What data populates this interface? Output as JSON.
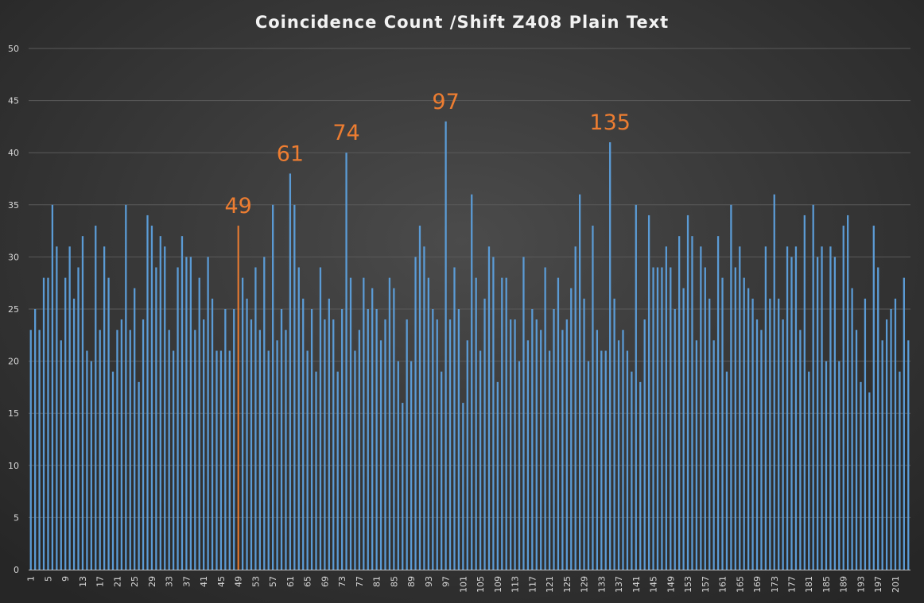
{
  "chart_data": {
    "type": "bar",
    "title": "Coincidence Count /Shift Z408 Plain Text",
    "xlabel": "",
    "ylabel": "",
    "ylim": [
      0,
      50
    ],
    "yticks": [
      0,
      5,
      10,
      15,
      20,
      25,
      30,
      35,
      40,
      45,
      50
    ],
    "x_tick_every": 4,
    "x_start": 1,
    "grid": true,
    "legend": "none",
    "colors": {
      "bar": "#5b9bd5",
      "highlight": "#ed7d31",
      "annotation": "#ed7d31"
    },
    "highlighted_shift": 49,
    "annotations": [
      {
        "label": "49",
        "shift": 49
      },
      {
        "label": "61",
        "shift": 61
      },
      {
        "label": "74",
        "shift": 74
      },
      {
        "label": "97",
        "shift": 97
      },
      {
        "label": "135",
        "shift": 135
      }
    ],
    "values": [
      23,
      25,
      23,
      28,
      28,
      35,
      31,
      22,
      28,
      31,
      26,
      29,
      32,
      21,
      20,
      33,
      23,
      31,
      28,
      19,
      23,
      24,
      35,
      23,
      27,
      18,
      24,
      34,
      33,
      29,
      32,
      31,
      23,
      21,
      29,
      32,
      30,
      30,
      23,
      28,
      24,
      30,
      26,
      21,
      21,
      25,
      21,
      25,
      33,
      28,
      26,
      24,
      29,
      23,
      30,
      21,
      35,
      22,
      25,
      23,
      38,
      35,
      29,
      26,
      21,
      25,
      19,
      29,
      24,
      26,
      24,
      19,
      25,
      40,
      28,
      21,
      23,
      28,
      25,
      27,
      25,
      22,
      24,
      28,
      27,
      20,
      16,
      24,
      20,
      30,
      33,
      31,
      28,
      25,
      24,
      19,
      43,
      24,
      29,
      25,
      16,
      22,
      36,
      28,
      21,
      26,
      31,
      30,
      18,
      28,
      28,
      24,
      24,
      20,
      30,
      22,
      25,
      24,
      23,
      29,
      21,
      25,
      28,
      23,
      24,
      27,
      31,
      36,
      26,
      20,
      33,
      23,
      21,
      21,
      41,
      26,
      22,
      23,
      21,
      19,
      35,
      18,
      24,
      34,
      29,
      29,
      29,
      31,
      29,
      25,
      32,
      27,
      34,
      32,
      22,
      31,
      29,
      26,
      22,
      32,
      28,
      19,
      35,
      29,
      31,
      28,
      27,
      26,
      24,
      23,
      31,
      26,
      36,
      26,
      24,
      31,
      30,
      31,
      23,
      34,
      19,
      35,
      30,
      31,
      20,
      31,
      30,
      20,
      33,
      34,
      27,
      23,
      18,
      26,
      17,
      33,
      29,
      22,
      24,
      25,
      26,
      19,
      28,
      22
    ]
  }
}
